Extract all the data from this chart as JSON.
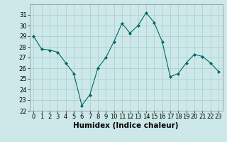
{
  "x": [
    0,
    1,
    2,
    3,
    4,
    5,
    6,
    7,
    8,
    9,
    10,
    11,
    12,
    13,
    14,
    15,
    16,
    17,
    18,
    19,
    20,
    21,
    22,
    23
  ],
  "y": [
    29.0,
    27.8,
    27.7,
    27.5,
    26.5,
    25.5,
    22.5,
    23.5,
    26.0,
    27.0,
    28.5,
    30.2,
    29.3,
    30.0,
    31.2,
    30.3,
    28.5,
    25.2,
    25.5,
    26.5,
    27.3,
    27.1,
    26.5,
    25.7
  ],
  "xlabel": "Humidex (Indice chaleur)",
  "ylim": [
    22,
    32
  ],
  "yticks": [
    22,
    23,
    24,
    25,
    26,
    27,
    28,
    29,
    30,
    31
  ],
  "xticks": [
    0,
    1,
    2,
    3,
    4,
    5,
    6,
    7,
    8,
    9,
    10,
    11,
    12,
    13,
    14,
    15,
    16,
    17,
    18,
    19,
    20,
    21,
    22,
    23
  ],
  "line_color": "#006666",
  "marker": "D",
  "marker_size": 2,
  "bg_color": "#cce8e8",
  "grid_color": "#aacccc",
  "tick_fontsize": 6,
  "xlabel_fontsize": 7.5,
  "fig_width": 3.2,
  "fig_height": 2.0,
  "dpi": 100
}
